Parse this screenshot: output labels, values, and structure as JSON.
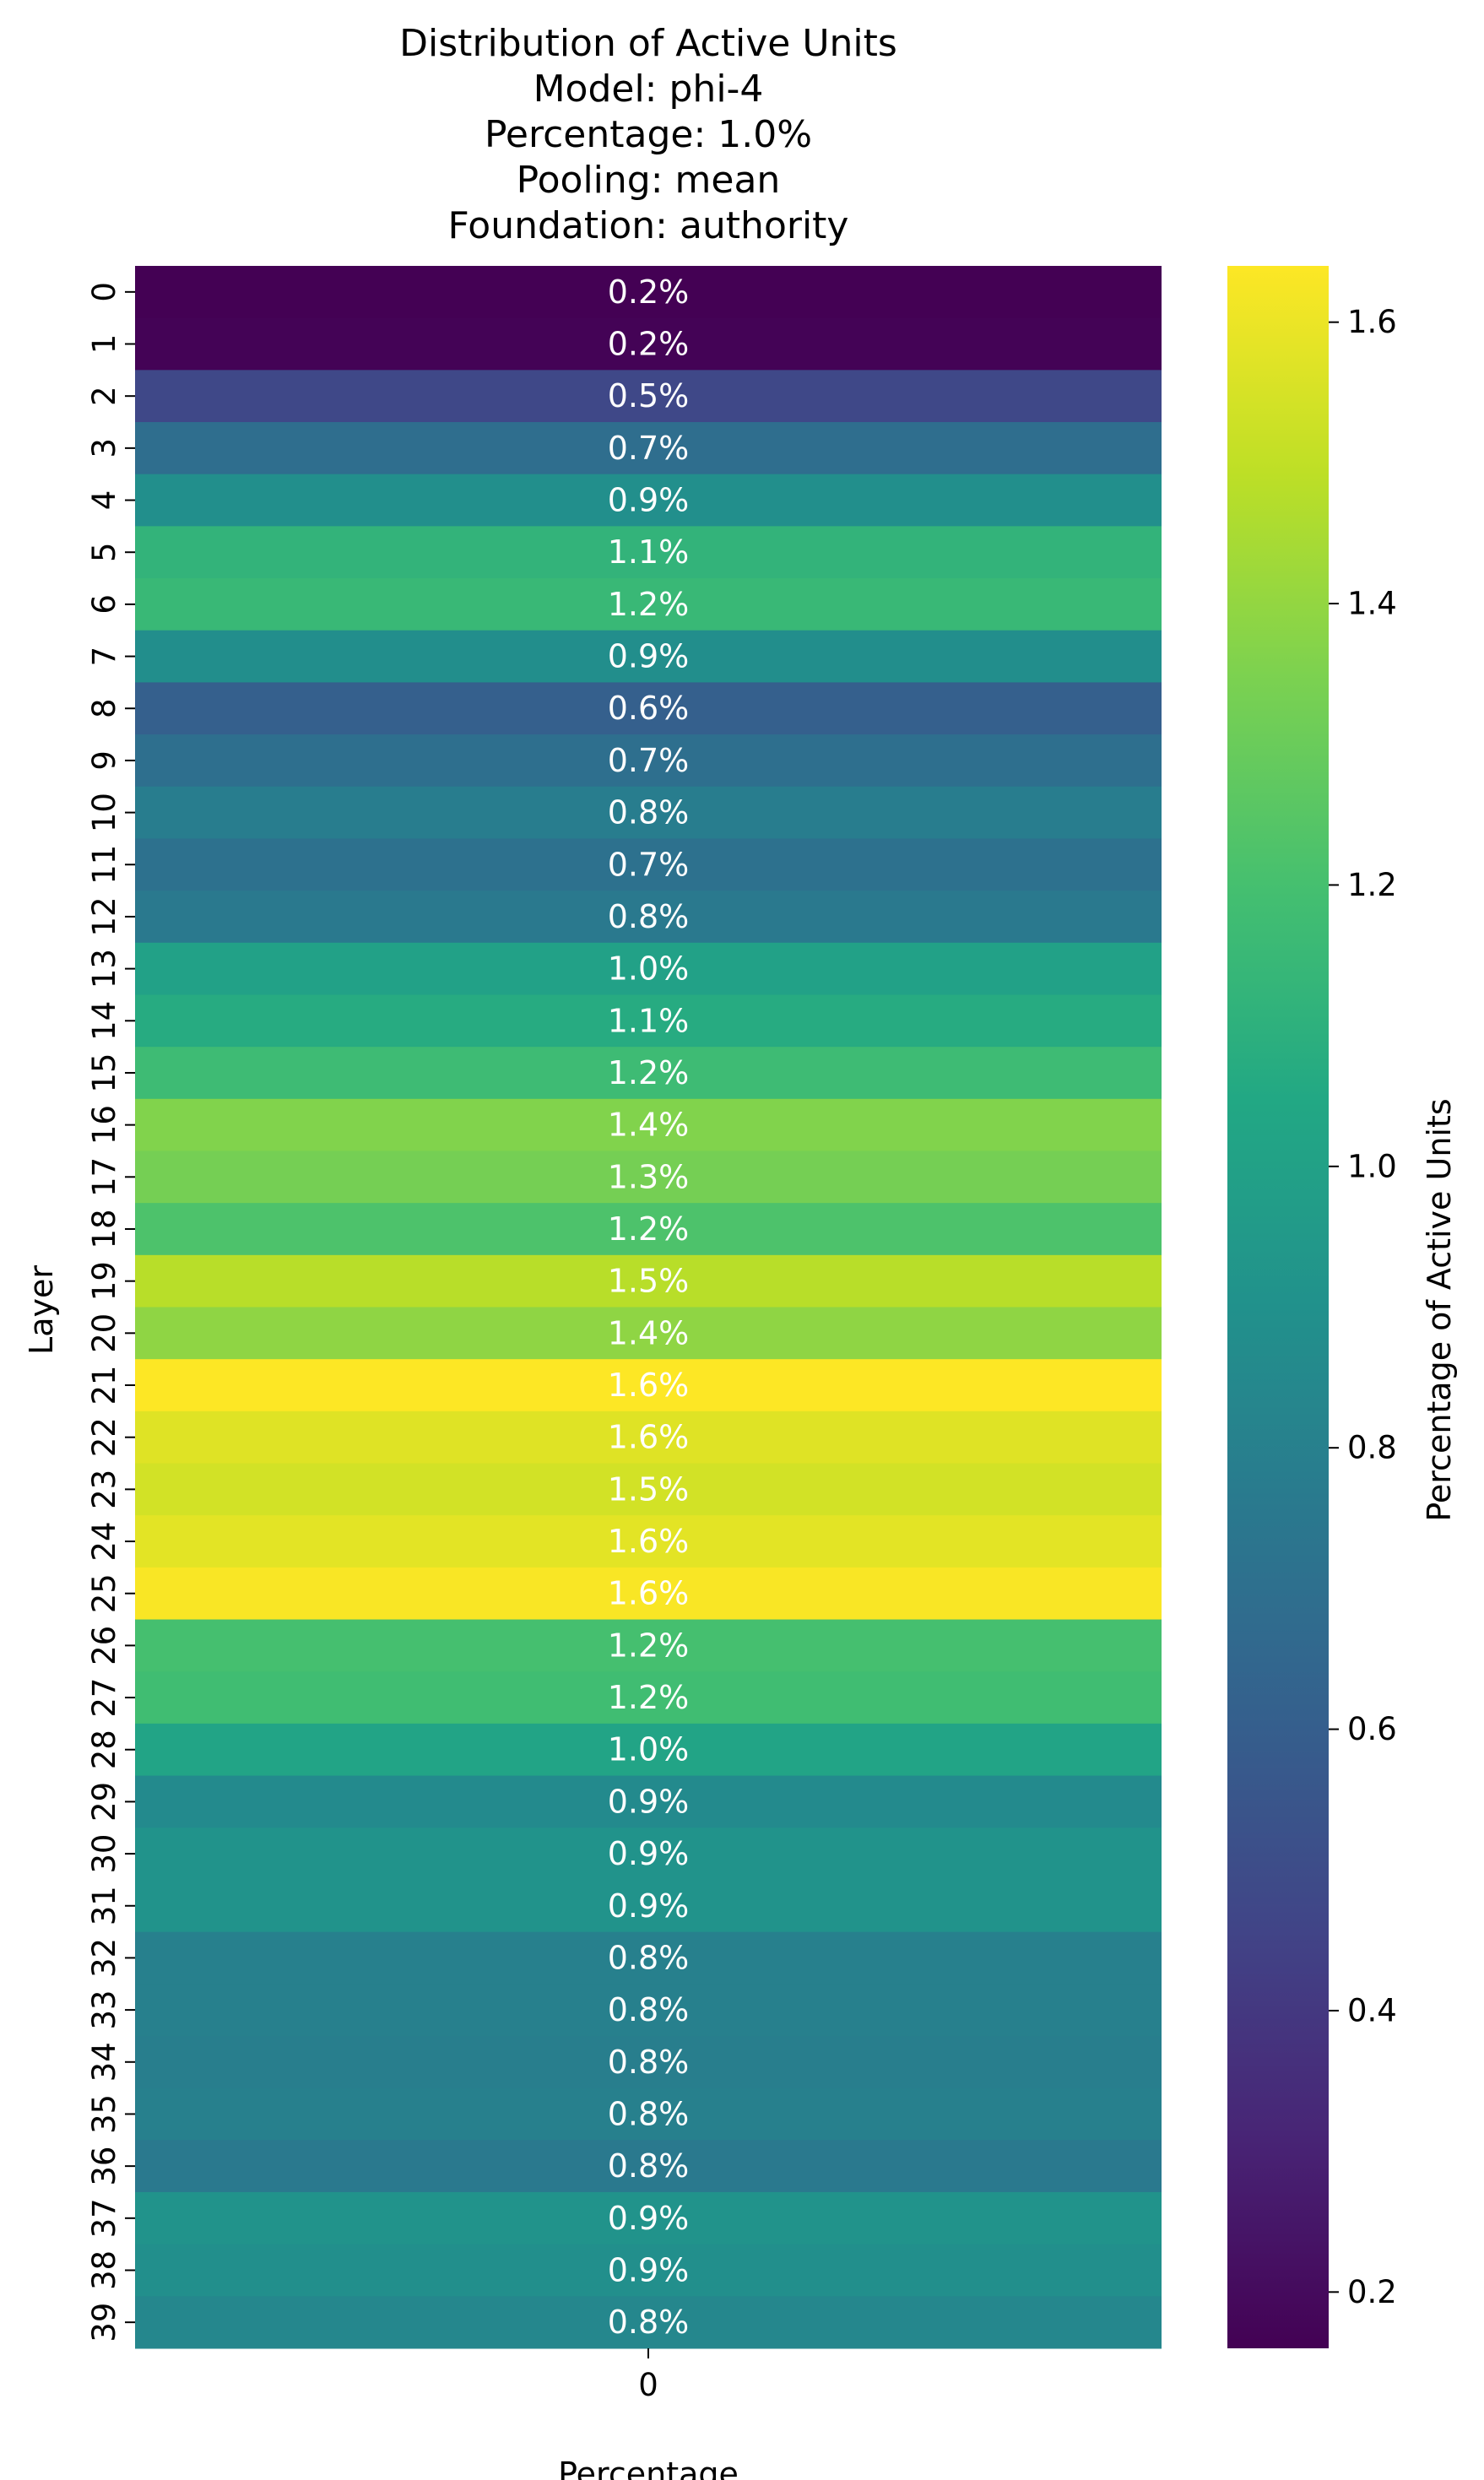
{
  "chart_data": {
    "type": "heatmap",
    "title_lines": [
      "Distribution of Active Units",
      "Model: phi-4",
      "Percentage: 1.0%",
      "Pooling: mean",
      "Foundation: authority"
    ],
    "xlabel": "Percentage",
    "ylabel": "Layer",
    "x_tick_labels": [
      "0"
    ],
    "rows": [
      "0",
      "1",
      "2",
      "3",
      "4",
      "5",
      "6",
      "7",
      "8",
      "9",
      "10",
      "11",
      "12",
      "13",
      "14",
      "15",
      "16",
      "17",
      "18",
      "19",
      "20",
      "21",
      "22",
      "23",
      "24",
      "25",
      "26",
      "27",
      "28",
      "29",
      "30",
      "31",
      "32",
      "33",
      "34",
      "35",
      "36",
      "37",
      "38",
      "39"
    ],
    "values": [
      0.16,
      0.17,
      0.48,
      0.69,
      0.89,
      1.12,
      1.15,
      0.88,
      0.61,
      0.7,
      0.78,
      0.71,
      0.76,
      1.0,
      1.07,
      1.17,
      1.36,
      1.33,
      1.22,
      1.48,
      1.39,
      1.64,
      1.57,
      1.54,
      1.58,
      1.63,
      1.2,
      1.18,
      1.02,
      0.86,
      0.91,
      0.91,
      0.8,
      0.8,
      0.79,
      0.8,
      0.76,
      0.91,
      0.89,
      0.84
    ],
    "annotations": [
      "0.2%",
      "0.2%",
      "0.5%",
      "0.7%",
      "0.9%",
      "1.1%",
      "1.2%",
      "0.9%",
      "0.6%",
      "0.7%",
      "0.8%",
      "0.7%",
      "0.8%",
      "1.0%",
      "1.1%",
      "1.2%",
      "1.4%",
      "1.3%",
      "1.2%",
      "1.5%",
      "1.4%",
      "1.6%",
      "1.6%",
      "1.5%",
      "1.6%",
      "1.6%",
      "1.2%",
      "1.2%",
      "1.0%",
      "0.9%",
      "0.9%",
      "0.9%",
      "0.8%",
      "0.8%",
      "0.8%",
      "0.8%",
      "0.8%",
      "0.9%",
      "0.9%",
      "0.8%"
    ],
    "colorbar": {
      "label": "Percentage of Active Units",
      "range": [
        0.16,
        1.64
      ],
      "ticks": [
        0.2,
        0.4,
        0.6,
        0.8,
        1.0,
        1.2,
        1.4,
        1.6
      ],
      "tick_labels": [
        "0.2",
        "0.4",
        "0.6",
        "0.8",
        "1.0",
        "1.2",
        "1.4",
        "1.6"
      ],
      "colormap": "viridis"
    }
  }
}
